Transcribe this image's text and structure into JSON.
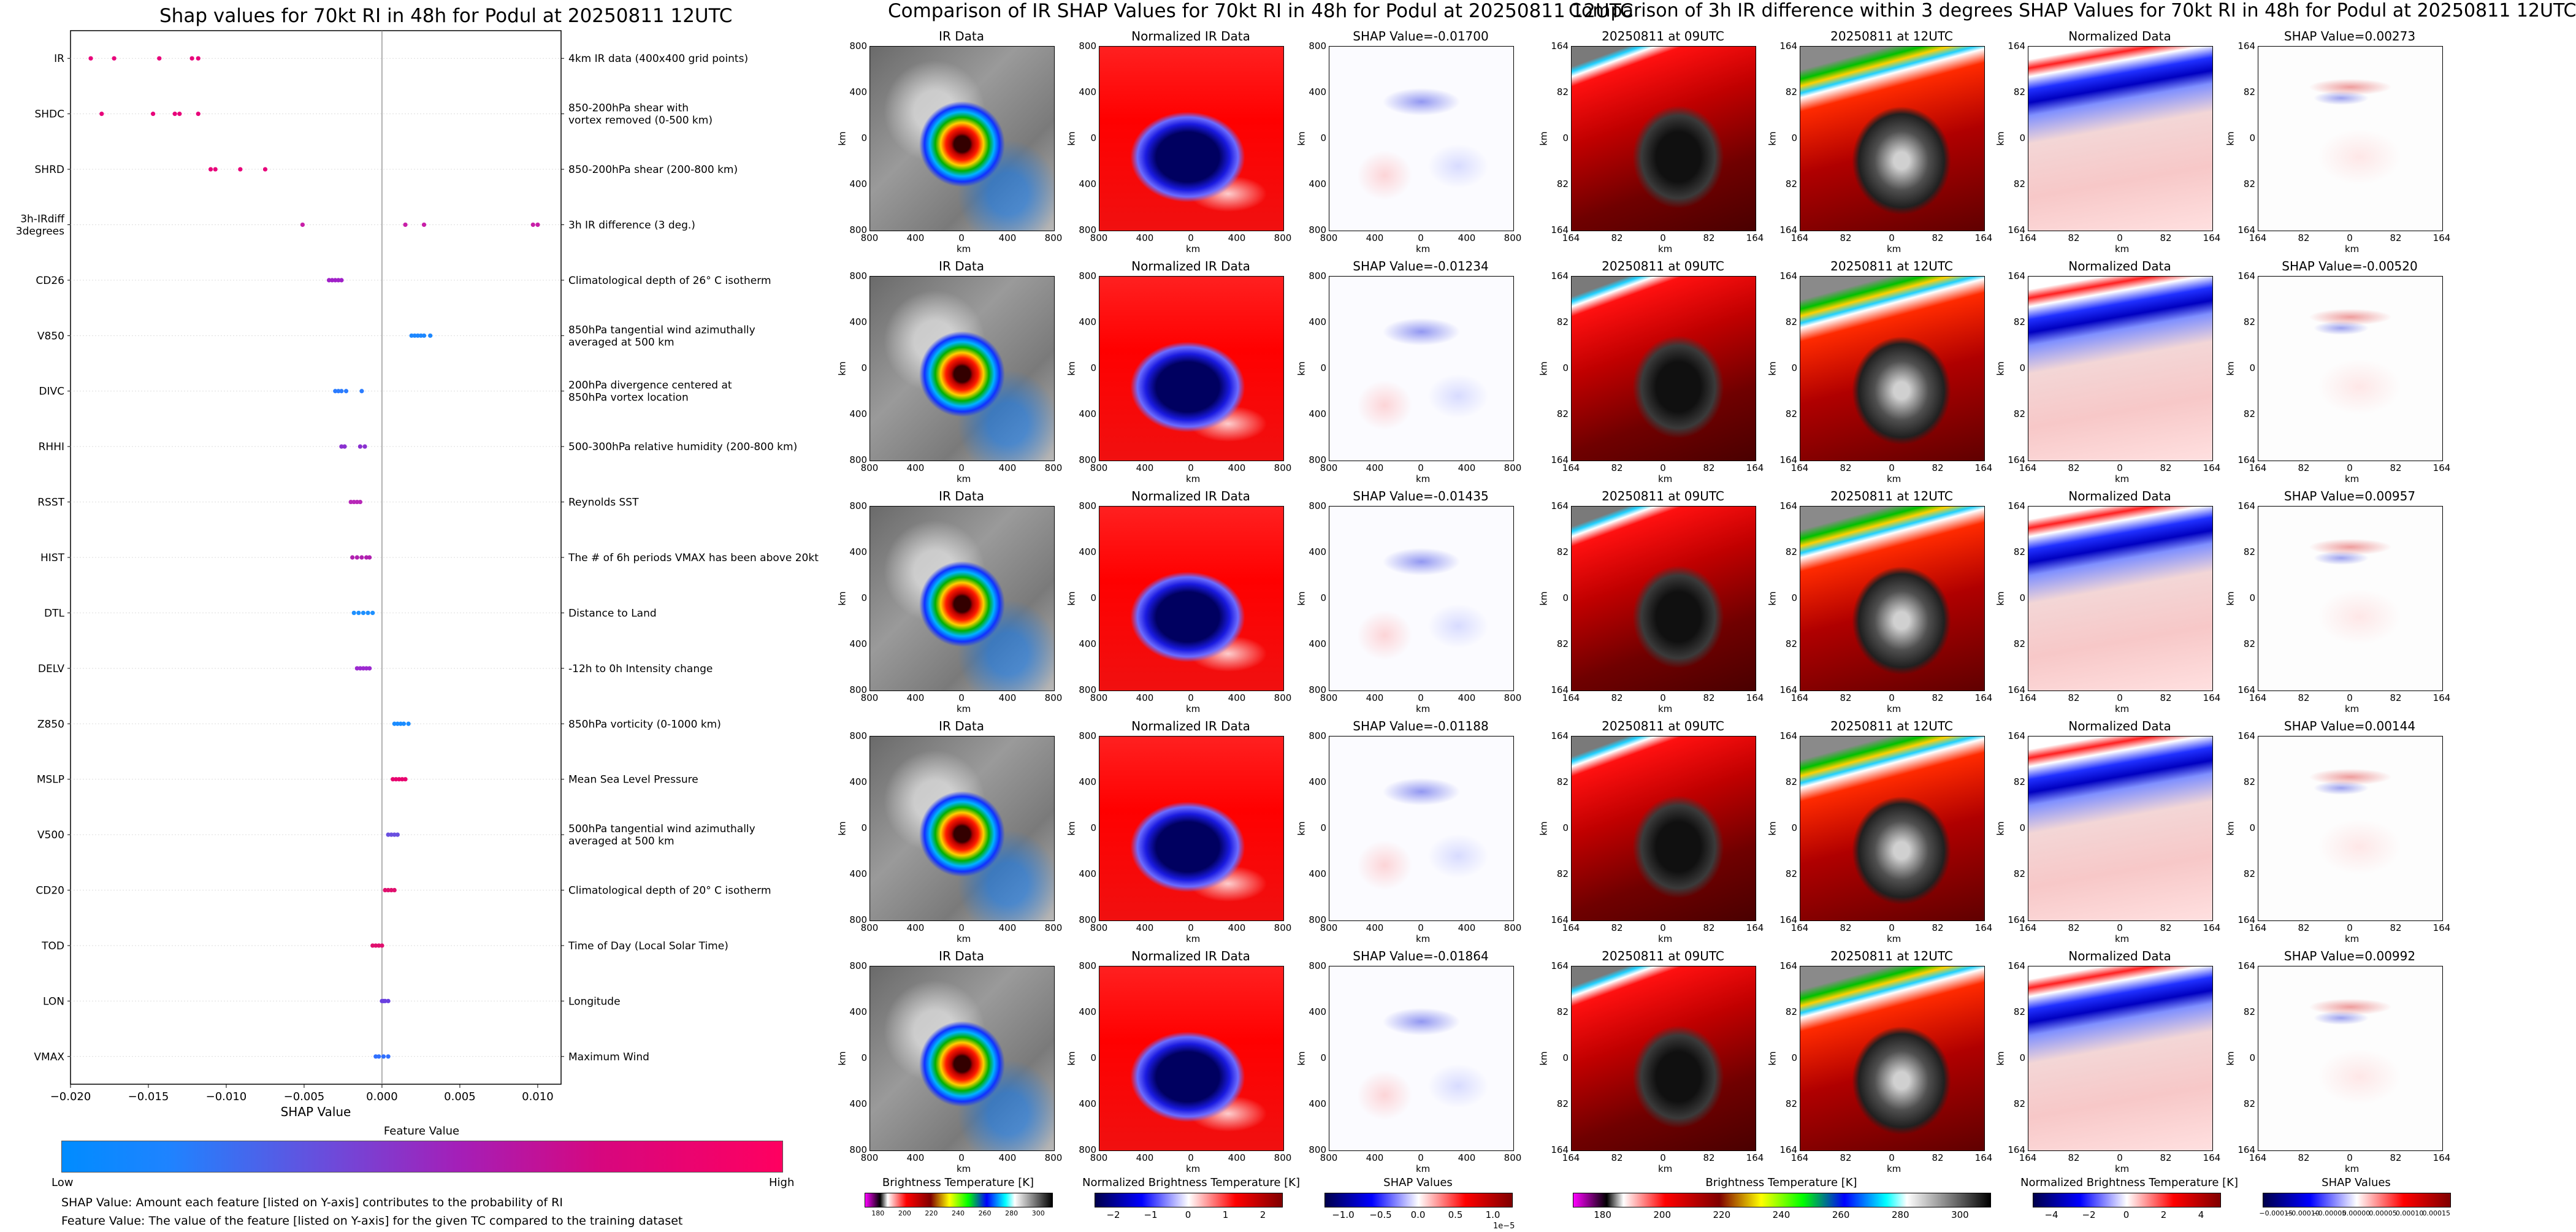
{
  "shap_panel": {
    "title": "Shap values for 70kt RI in 48h for Podul at 20250811 12UTC",
    "xlabel": "SHAP Value",
    "colorbar_title": "Feature Value",
    "colorbar_low": "Low",
    "colorbar_high": "High",
    "note_1": "SHAP Value: Amount each feature [listed on Y-axis] contributes to the probability of RI",
    "note_2": "Feature Value: The value of the feature [listed on Y-axis] for the given TC compared to the training dataset"
  },
  "chart_data": [
    {
      "type": "scatter",
      "title": "Shap values for 70kt RI in 48h for Podul at 20250811 12UTC",
      "xlabel": "SHAP Value",
      "xlim": [
        -0.02,
        0.0115
      ],
      "xticks": [
        "−0.020",
        "−0.015",
        "−0.010",
        "−0.005",
        "0.000",
        "0.005",
        "0.010"
      ],
      "xtick_values": [
        -0.02,
        -0.015,
        -0.01,
        -0.005,
        0.0,
        0.005,
        0.01
      ],
      "grid": false,
      "features": [
        {
          "name": "IR",
          "desc": "4km IR data (400x400 grid points)",
          "points": [
            -0.0187,
            -0.0172,
            -0.0143,
            -0.0122,
            -0.0118
          ],
          "color": "#e8007a"
        },
        {
          "name": "SHDC",
          "desc": "850-200hPa shear with\nvortex removed (0-500 km)",
          "points": [
            -0.018,
            -0.0147,
            -0.0133,
            -0.013,
            -0.0118
          ],
          "color": "#e8007a"
        },
        {
          "name": "SHRD",
          "desc": "850-200hPa shear (200-800 km)",
          "points": [
            -0.011,
            -0.0107,
            -0.0091,
            -0.0075
          ],
          "color": "#e8007a"
        },
        {
          "name": "3h-IRdiff\n3degrees",
          "desc": "3h IR difference (3 deg.)",
          "points": [
            -0.0051,
            0.0015,
            0.0027,
            0.0097,
            0.01
          ],
          "color": "#c81fa8"
        },
        {
          "name": "CD26",
          "desc": "Climatological depth of 26° C isotherm",
          "points": [
            -0.0034,
            -0.0032,
            -0.003,
            -0.0028,
            -0.0026
          ],
          "color": "#a020c8"
        },
        {
          "name": "V850",
          "desc": "850hPa tangential wind azimuthally\naveraged at 500 km",
          "points": [
            0.0019,
            0.0021,
            0.0023,
            0.0025,
            0.0027,
            0.0031
          ],
          "color": "#1e88ff"
        },
        {
          "name": "DIVC",
          "desc": "200hPa divergence centered at\n850hPa vortex location",
          "points": [
            -0.003,
            -0.0028,
            -0.0026,
            -0.0023,
            -0.0013
          ],
          "color": "#2b7cff"
        },
        {
          "name": "RHHI",
          "desc": "500-300hPa relative humidity (200-800 km)",
          "points": [
            -0.0026,
            -0.0024,
            -0.0014,
            -0.0011
          ],
          "color": "#8a30d0"
        },
        {
          "name": "RSST",
          "desc": "Reynolds SST",
          "points": [
            -0.002,
            -0.0018,
            -0.0016,
            -0.0014
          ],
          "color": "#b828b8"
        },
        {
          "name": "HIST",
          "desc": "The # of 6h periods VMAX has been above 20kt",
          "points": [
            -0.0019,
            -0.0016,
            -0.0013,
            -0.001,
            -0.0008
          ],
          "color": "#b020b0"
        },
        {
          "name": "DTL",
          "desc": "Distance to Land",
          "points": [
            -0.0018,
            -0.0015,
            -0.0012,
            -0.0009,
            -0.0006
          ],
          "color": "#1e90ff"
        },
        {
          "name": "DELV",
          "desc": "-12h to 0h Intensity change",
          "points": [
            -0.0016,
            -0.0014,
            -0.0012,
            -0.001,
            -0.0008
          ],
          "color": "#9c2ad0"
        },
        {
          "name": "Z850",
          "desc": "850hPa vorticity (0-1000 km)",
          "points": [
            0.0008,
            0.001,
            0.0012,
            0.0014,
            0.0017
          ],
          "color": "#1a8cff"
        },
        {
          "name": "MSLP",
          "desc": "Mean Sea Level Pressure",
          "points": [
            0.0007,
            0.0009,
            0.0011,
            0.0013,
            0.0015
          ],
          "color": "#e8006e"
        },
        {
          "name": "V500",
          "desc": "500hPa tangential wind azimuthally\naveraged at 500 km",
          "points": [
            0.0004,
            0.0006,
            0.0008,
            0.001
          ],
          "color": "#6a50e0"
        },
        {
          "name": "CD20",
          "desc": "Climatological depth of 20° C isotherm",
          "points": [
            0.0002,
            0.0004,
            0.0006,
            0.0008
          ],
          "color": "#e0106e"
        },
        {
          "name": "TOD",
          "desc": "Time of Day (Local Solar Time)",
          "points": [
            -0.0006,
            -0.0004,
            -0.0002,
            0.0
          ],
          "color": "#e0106e"
        },
        {
          "name": "LON",
          "desc": "Longitude",
          "points": [
            0.0,
            0.0001,
            0.0002,
            0.0004
          ],
          "color": "#6a40e0"
        },
        {
          "name": "VMAX",
          "desc": "Maximum Wind",
          "points": [
            -0.0004,
            -0.0002,
            0.0001,
            0.0004
          ],
          "color": "#3070ff"
        }
      ]
    },
    {
      "type": "heatmap",
      "title": "Comparison of IR SHAP Values for 70kt RI in 48h for Podul at 20250811 12UTC",
      "panels": [
        "IR Data",
        "Normalized IR Data",
        "SHAP Value=-0.01700",
        "IR Data",
        "Normalized IR Data",
        "SHAP Value=-0.01234",
        "IR Data",
        "Normalized IR Data",
        "SHAP Value=-0.01435",
        "IR Data",
        "Normalized IR Data",
        "SHAP Value=-0.01188",
        "IR Data",
        "Normalized IR Data",
        "SHAP Value=-0.01864"
      ],
      "shap_values": [
        -0.017,
        -0.01234,
        -0.01435,
        -0.01188,
        -0.01864
      ],
      "xlabel": "km",
      "ylabel": "km",
      "xticks": [
        "800",
        "400",
        "0",
        "400",
        "800"
      ],
      "yticks": [
        "800",
        "400",
        "0",
        "400",
        "800"
      ],
      "colorbars": [
        {
          "label": "Brightness Temperature [K]",
          "ticks": [
            "180",
            "200",
            "220",
            "240",
            "260",
            "280",
            "300"
          ]
        },
        {
          "label": "Normalized Brightness Temperature [K]",
          "ticks": [
            "−2",
            "−1",
            "0",
            "1",
            "2"
          ]
        },
        {
          "label": "SHAP Values",
          "ticks": [
            "−1.0",
            "−0.5",
            "0.0",
            "0.5",
            "1.0"
          ],
          "offset": "1e−5"
        }
      ]
    },
    {
      "type": "heatmap",
      "title": "Comparison of 3h IR difference within 3 degrees SHAP Values for 70kt RI in 48h for Podul at 20250811 12UTC",
      "panels": [
        "20250811 at 09UTC",
        "20250811 at 12UTC",
        "Normalized Data",
        "SHAP Value=0.00273",
        "SHAP Value=-0.00520",
        "SHAP Value=0.00957",
        "SHAP Value=0.00144",
        "SHAP Value=0.00992"
      ],
      "shap_values": [
        0.00273,
        -0.0052,
        0.00957,
        0.00144,
        0.00992
      ],
      "xlabel": "km",
      "ylabel": "km",
      "xticks": [
        "164",
        "82",
        "0",
        "82",
        "164"
      ],
      "yticks": [
        "164",
        "82",
        "0",
        "82",
        "164"
      ],
      "colorbars": [
        {
          "label": "Brightness Temperature [K]",
          "ticks": [
            "180",
            "200",
            "220",
            "240",
            "260",
            "280",
            "300"
          ]
        },
        {
          "label": "Normalized Brightness Temperature [K]",
          "ticks": [
            "−4",
            "−2",
            "0",
            "2",
            "4"
          ]
        },
        {
          "label": "SHAP Values",
          "ticks": [
            "−0.00015",
            "−0.00010",
            "−0.00005",
            "0.00000",
            "0.00005",
            "0.00010",
            "0.00015"
          ]
        }
      ]
    }
  ],
  "ir_section": {
    "title": "Comparison of IR SHAP Values for 70kt RI in 48h for Podul at 20250811 12UTC",
    "col1_title": "IR Data",
    "col2_title": "Normalized IR Data",
    "shap_titles": [
      "SHAP Value=-0.01700",
      "SHAP Value=-0.01234",
      "SHAP Value=-0.01435",
      "SHAP Value=-0.01188",
      "SHAP Value=-0.01864"
    ],
    "axis_label": "km",
    "ticks": [
      "800",
      "400",
      "0",
      "400",
      "800"
    ],
    "cb1_label": "Brightness Temperature [K]",
    "cb1_ticks": [
      "180",
      "200",
      "220",
      "240",
      "260",
      "280",
      "300"
    ],
    "cb2_label": "Normalized Brightness Temperature [K]",
    "cb2_ticks": [
      "−2",
      "−1",
      "0",
      "1",
      "2"
    ],
    "cb3_label": "SHAP Values",
    "cb3_ticks": [
      "−1.0",
      "−0.5",
      "0.0",
      "0.5",
      "1.0"
    ],
    "cb3_offset": "1e−5"
  },
  "diff_section": {
    "title": "Comparison of 3h IR difference within 3 degrees SHAP Values for 70kt RI in 48h for Podul at 20250811 12UTC",
    "col1_title": "20250811 at 09UTC",
    "col2_title": "20250811 at 12UTC",
    "col3_title": "Normalized Data",
    "shap_titles": [
      "SHAP Value=0.00273",
      "SHAP Value=-0.00520",
      "SHAP Value=0.00957",
      "SHAP Value=0.00144",
      "SHAP Value=0.00992"
    ],
    "axis_label": "km",
    "ticks": [
      "164",
      "82",
      "0",
      "82",
      "164"
    ],
    "cb1_label": "Brightness Temperature [K]",
    "cb1_ticks": [
      "180",
      "200",
      "220",
      "240",
      "260",
      "280",
      "300"
    ],
    "cb2_label": "Normalized Brightness Temperature [K]",
    "cb2_ticks": [
      "−4",
      "−2",
      "0",
      "2",
      "4"
    ],
    "cb3_label": "SHAP Values",
    "cb3_ticks": [
      "−0.00015",
      "−0.00010",
      "−0.00005",
      "0.00000",
      "0.00005",
      "0.00010",
      "0.00015"
    ]
  }
}
